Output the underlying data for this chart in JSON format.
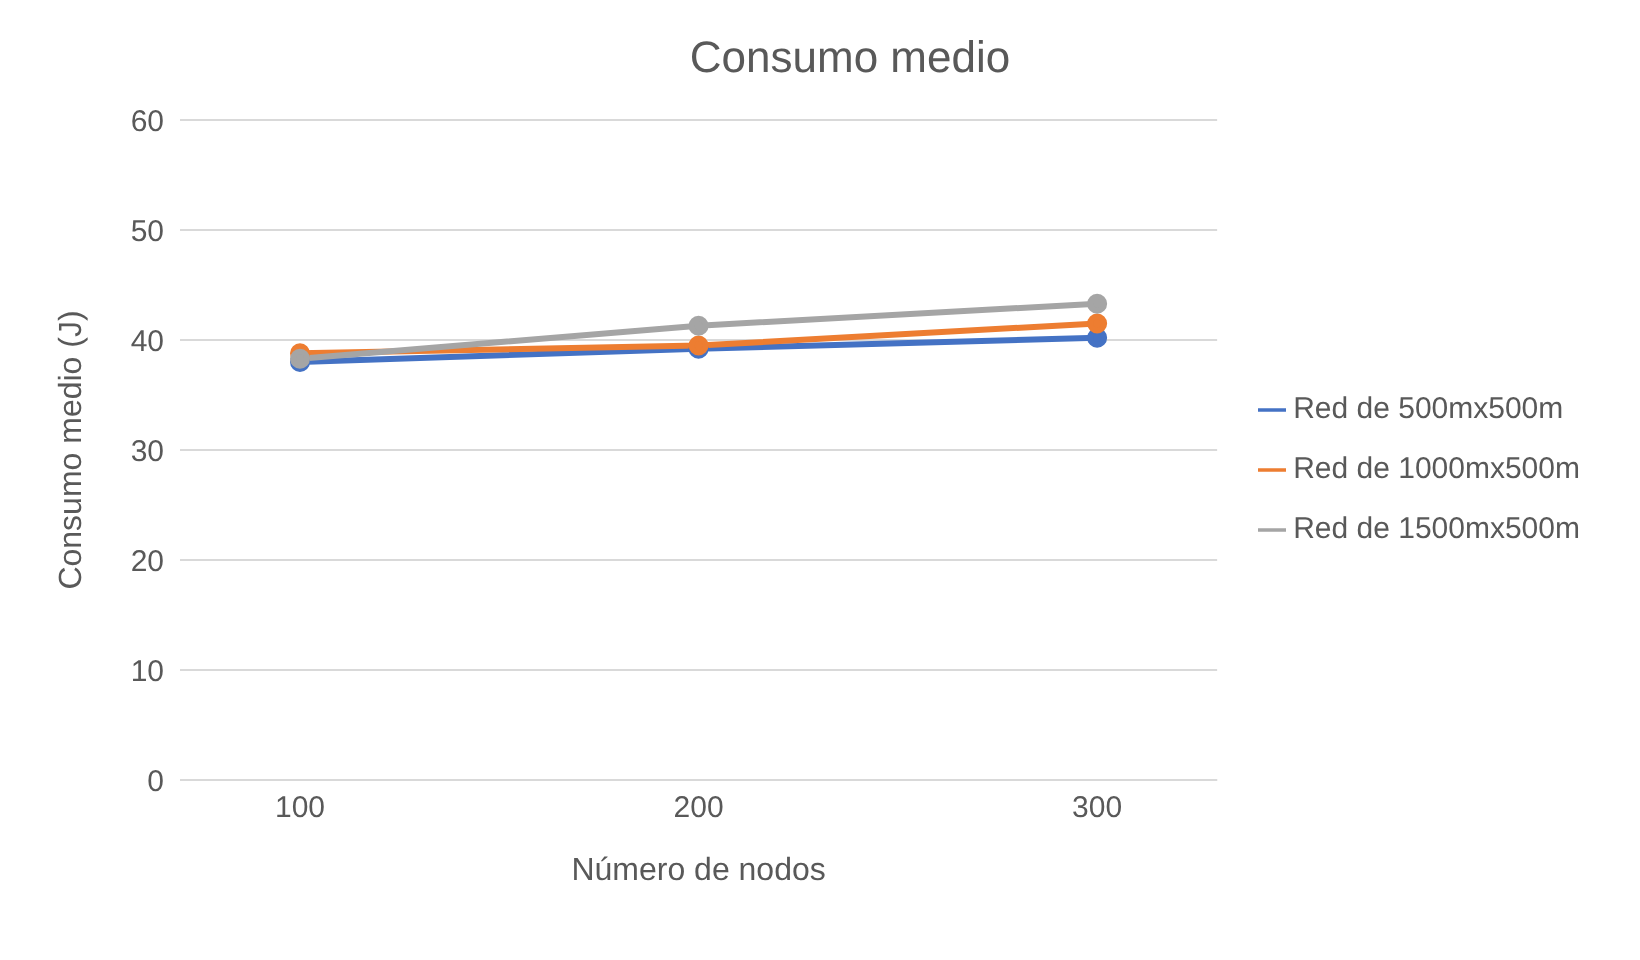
{
  "chart_data": {
    "type": "line",
    "title": "Consumo medio",
    "xlabel": "Número de nodos",
    "ylabel": "Consumo medio (J)",
    "categories": [
      "100",
      "200",
      "300"
    ],
    "series": [
      {
        "name": "Red de 500mx500m",
        "color": "#4472c4",
        "values": [
          38.0,
          39.2,
          40.2
        ]
      },
      {
        "name": "Red de 1000mx500m",
        "color": "#ed7d31",
        "values": [
          38.8,
          39.5,
          41.5
        ]
      },
      {
        "name": "Red de 1500mx500m",
        "color": "#a5a5a5",
        "values": [
          38.3,
          41.3,
          43.3
        ]
      }
    ],
    "ylim": [
      0,
      60
    ],
    "yticks": [
      0,
      10,
      20,
      30,
      40,
      50,
      60
    ],
    "grid": "y",
    "legend": "right",
    "marker": "circle",
    "line_style": "solid"
  }
}
